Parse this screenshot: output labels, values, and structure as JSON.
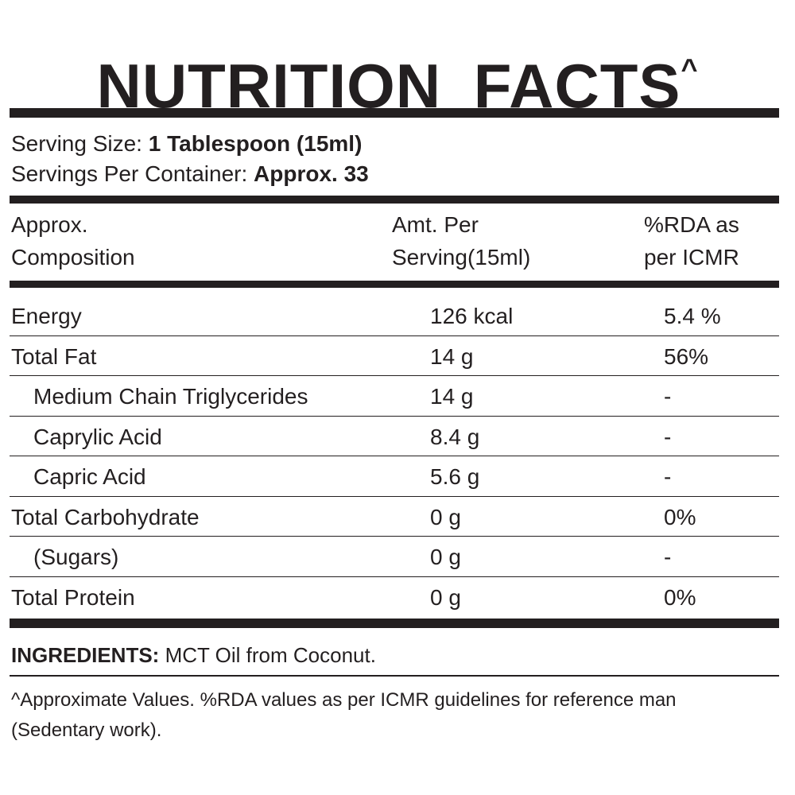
{
  "header": {
    "title": "NUTRITION  FACTS",
    "title_mark": "^"
  },
  "serving": {
    "size_label": "Serving Size:",
    "size": "1 Tablespoon (15ml)",
    "per_container_label": "Servings Per Container:",
    "per_container": "Approx. 33"
  },
  "table": {
    "columns": [
      [
        "Approx.",
        "Composition"
      ],
      [
        "Amt. Per",
        "Serving(15ml)"
      ],
      [
        "%RDA as",
        "per ICMR"
      ]
    ],
    "rows": [
      {
        "name": "Energy",
        "amount": "126 kcal",
        "rda": "5.4 %"
      },
      {
        "name": "Total Fat",
        "amount": "14 g",
        "rda": "56%",
        "items": [
          {
            "name": "Medium Chain Triglycerides",
            "amount": "14 g",
            "rda": "-"
          },
          {
            "name": "Caprylic Acid",
            "amount": "8.4 g",
            "rda": "-"
          },
          {
            "name": "Capric Acid",
            "amount": "5.6 g",
            "rda": "-"
          }
        ]
      },
      {
        "name": "Total Carbohydrate",
        "amount": "0 g",
        "rda": "0%",
        "items": [
          {
            "name": "(Sugars)",
            "amount": "0 g",
            "rda": "-"
          }
        ]
      },
      {
        "name": "Total Protein",
        "amount": "0 g",
        "rda": "0%"
      }
    ]
  },
  "ingredients": {
    "label": "INGREDIENTS:",
    "text": "MCT Oil from Coconut."
  },
  "footnote": "^Approximate Values. %RDA values as per ICMR guidelines for reference man (Sedentary work)."
}
